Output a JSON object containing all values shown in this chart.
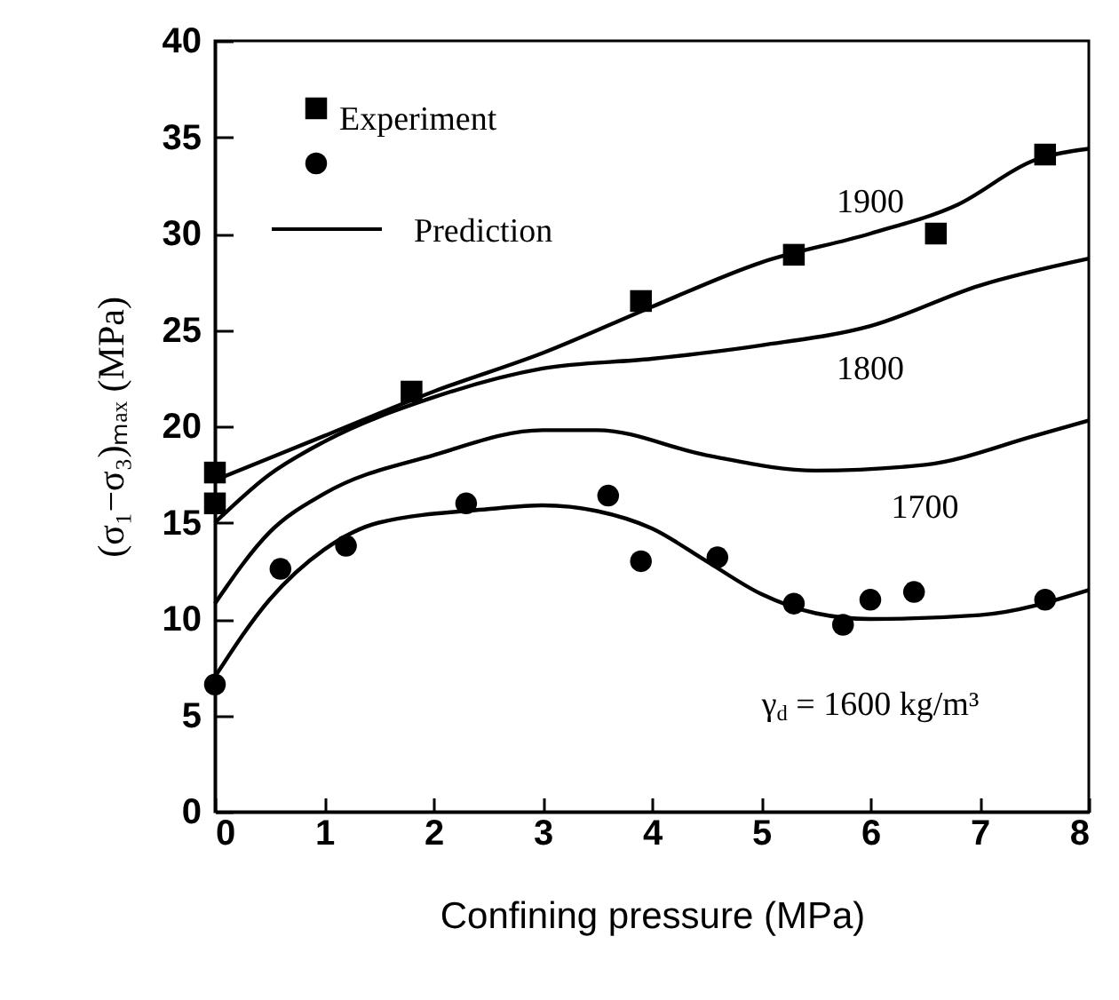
{
  "chart_data": {
    "type": "line",
    "xlabel": "Confining pressure (MPa)",
    "ylabel": "(σ₁−σ₃)ₘₐₓ (MPa)",
    "xlim": [
      0,
      8
    ],
    "xticks": [
      0,
      1,
      2,
      3,
      4,
      5,
      6,
      7,
      8
    ],
    "ylim": [
      0,
      40
    ],
    "yticks": [
      0,
      5,
      10,
      15,
      20,
      25,
      30,
      35,
      40
    ],
    "grid": false,
    "legend": "top left",
    "annotations": [
      "Prediction"
    ],
    "series": [
      {
        "name": "Experiment",
        "type": "scatter",
        "marker": "square",
        "color": "#000000",
        "x": [
          0,
          0,
          1.8,
          3.9,
          5.3,
          6.6,
          7.6
        ],
        "values": [
          17.6,
          16,
          21.8,
          26.5,
          28.9,
          30,
          34.1
        ]
      },
      {
        "type": "scatter",
        "marker": "circle",
        "color": "#000000",
        "x": [
          0,
          0.6,
          1.2,
          2.3,
          3.6,
          3.9,
          4.6,
          5.3,
          5.75,
          6,
          6.4,
          7.6
        ],
        "values": [
          6.6,
          12.6,
          13.8,
          16,
          16.4,
          13,
          13.2,
          10.8,
          9.7,
          11,
          11.4,
          11
        ]
      },
      {
        "name": "1900",
        "type": "line",
        "color": "#000000",
        "x": [
          0,
          1,
          2,
          3,
          4,
          5,
          6,
          6.8,
          7.5,
          8
        ],
        "values": [
          17.2,
          19.5,
          21.8,
          23.8,
          26.2,
          28.5,
          30,
          31.5,
          33.8,
          34.4
        ]
      },
      {
        "name": "1800",
        "type": "line",
        "color": "#000000",
        "x": [
          0,
          0.5,
          1,
          2,
          3,
          4,
          5,
          6,
          7,
          8
        ],
        "values": [
          15,
          17.5,
          19.2,
          21.5,
          23,
          23.5,
          24.2,
          25.2,
          27.3,
          28.7
        ]
      },
      {
        "name": "1700",
        "type": "line",
        "color": "#000000",
        "x": [
          0,
          0.5,
          1,
          2,
          3,
          3.5,
          4.5,
          5.5,
          6.5,
          7.5,
          8
        ],
        "values": [
          10.8,
          14.5,
          16.5,
          18.5,
          19.8,
          19.8,
          18.5,
          17.7,
          18,
          19.5,
          20.3
        ]
      },
      {
        "name": "γ$_{d}$ = 1600 kg/m³",
        "type": "line",
        "color": "#000000",
        "x": [
          0,
          0.5,
          1,
          1.5,
          2.5,
          3,
          3.5,
          4,
          4.5,
          5,
          5.5,
          6,
          7,
          8
        ],
        "values": [
          7,
          11,
          13.6,
          15,
          15.7,
          15.9,
          15.6,
          14.7,
          13,
          11.3,
          10.3,
          10,
          10.2,
          11.5
        ]
      }
    ]
  }
}
